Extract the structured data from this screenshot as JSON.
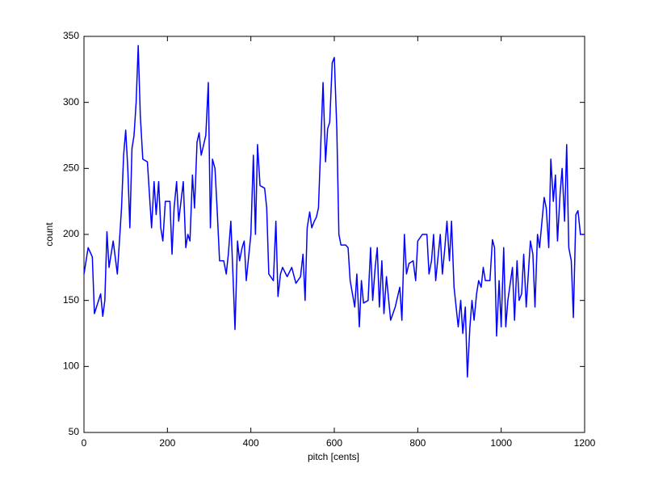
{
  "chart_data": {
    "type": "line",
    "xlabel": "pitch [cents]",
    "ylabel": "count",
    "x": [
      0,
      10,
      20,
      25,
      30,
      40,
      45,
      50,
      55,
      60,
      70,
      80,
      90,
      95,
      100,
      105,
      110,
      115,
      120,
      125,
      130,
      135,
      141,
      152,
      162,
      168,
      173,
      179,
      184,
      189,
      195,
      206,
      211,
      216,
      222,
      227,
      238,
      244,
      249,
      254,
      260,
      265,
      271,
      276,
      281,
      292,
      298,
      303,
      308,
      314,
      319,
      325,
      335,
      341,
      346,
      352,
      357,
      362,
      368,
      373,
      379,
      384,
      389,
      400,
      406,
      411,
      416,
      422,
      433,
      438,
      443,
      454,
      460,
      465,
      471,
      476,
      487,
      498,
      508,
      519,
      525,
      530,
      535,
      541,
      546,
      552,
      557,
      562,
      568,
      573,
      579,
      584,
      589,
      595,
      600,
      606,
      611,
      616,
      627,
      633,
      638,
      649,
      654,
      660,
      665,
      670,
      681,
      687,
      692,
      698,
      703,
      708,
      714,
      719,
      725,
      735,
      746,
      757,
      762,
      768,
      773,
      779,
      789,
      795,
      800,
      811,
      822,
      827,
      833,
      838,
      843,
      854,
      859,
      865,
      870,
      876,
      881,
      887,
      897,
      903,
      908,
      914,
      919,
      925,
      930,
      935,
      941,
      946,
      952,
      957,
      962,
      973,
      979,
      984,
      989,
      995,
      1000,
      1006,
      1011,
      1016,
      1027,
      1032,
      1038,
      1043,
      1049,
      1054,
      1060,
      1070,
      1076,
      1081,
      1087,
      1092,
      1103,
      1108,
      1114,
      1119,
      1125,
      1130,
      1135,
      1141,
      1146,
      1152,
      1157,
      1162,
      1168,
      1173,
      1179,
      1184,
      1190,
      1200
    ],
    "series": [
      {
        "name": "count",
        "color": "#0000ff",
        "values": [
          170,
          190,
          183,
          140,
          145,
          155,
          138,
          150,
          202,
          175,
          195,
          170,
          220,
          260,
          279,
          250,
          205,
          265,
          275,
          300,
          343,
          290,
          257,
          255,
          205,
          240,
          215,
          240,
          205,
          195,
          225,
          225,
          185,
          220,
          240,
          210,
          240,
          190,
          200,
          195,
          245,
          220,
          270,
          277,
          260,
          275,
          315,
          205,
          257,
          250,
          220,
          180,
          180,
          170,
          185,
          210,
          170,
          128,
          195,
          180,
          190,
          195,
          165,
          200,
          260,
          200,
          268,
          237,
          235,
          220,
          170,
          165,
          210,
          153,
          170,
          175,
          168,
          175,
          163,
          168,
          185,
          150,
          205,
          217,
          205,
          210,
          213,
          220,
          272,
          315,
          255,
          280,
          285,
          330,
          334,
          280,
          200,
          192,
          192,
          190,
          165,
          145,
          170,
          130,
          165,
          148,
          150,
          190,
          150,
          175,
          190,
          145,
          180,
          140,
          168,
          135,
          145,
          160,
          135,
          200,
          170,
          178,
          180,
          165,
          195,
          200,
          200,
          170,
          180,
          200,
          165,
          200,
          170,
          190,
          210,
          180,
          210,
          160,
          130,
          150,
          125,
          145,
          92,
          130,
          150,
          135,
          155,
          165,
          160,
          175,
          165,
          165,
          196,
          190,
          123,
          165,
          130,
          190,
          130,
          150,
          175,
          135,
          180,
          150,
          155,
          185,
          145,
          195,
          185,
          145,
          200,
          190,
          228,
          220,
          190,
          257,
          225,
          245,
          195,
          230,
          250,
          210,
          268,
          190,
          180,
          137,
          215,
          218,
          200,
          200
        ]
      }
    ],
    "xlim": [
      0,
      1200
    ],
    "xticks": [
      0,
      200,
      400,
      600,
      800,
      1000,
      1200
    ],
    "ylim": [
      50,
      350
    ],
    "yticks": [
      50,
      100,
      150,
      200,
      250,
      300,
      350
    ],
    "grid": false
  }
}
